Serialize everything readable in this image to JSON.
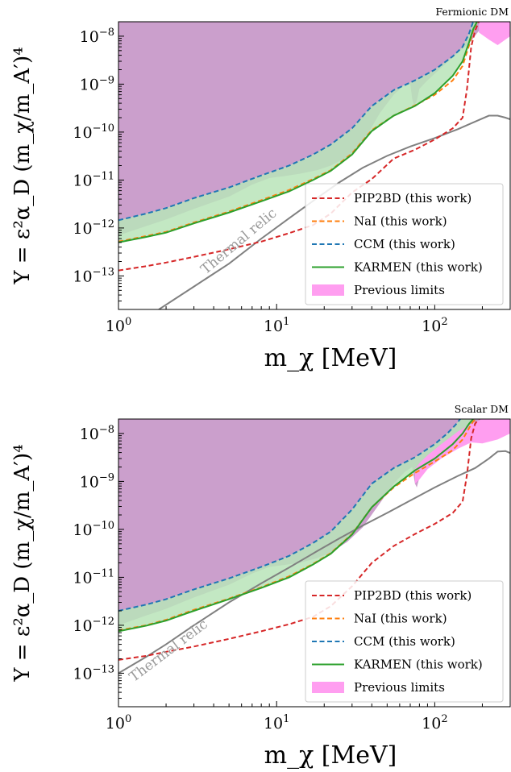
{
  "colors": {
    "PIP2BD": "#d62728",
    "NaI": "#ff7f0e",
    "CCM": "#1f77b4",
    "KARMEN": "#2ca02c",
    "previous": "#ff9ef0",
    "previous_overlap": "#cb9fcc",
    "band": "#b9e4b9",
    "relic": "#808080"
  },
  "chart_data": [
    {
      "type": "line",
      "title": "Fermionic DM",
      "xlabel": "m_χ [MeV]",
      "ylabel": "Y = ε²α_D (m_χ/m_A′)⁴",
      "xscale": "log",
      "yscale": "log",
      "xlim": [
        1,
        300
      ],
      "ylim": [
        2e-14,
        2e-08
      ],
      "xticks": [
        {
          "value": 1,
          "label": "10^0"
        },
        {
          "value": 10,
          "label": "10^1"
        },
        {
          "value": 100,
          "label": "10^2"
        }
      ],
      "yticks": [
        {
          "value": 1e-13,
          "label": "10^-13"
        },
        {
          "value": 1e-12,
          "label": "10^-12"
        },
        {
          "value": 1e-11,
          "label": "10^-11"
        },
        {
          "value": 1e-10,
          "label": "10^-10"
        },
        {
          "value": 1e-09,
          "label": "10^-9"
        },
        {
          "value": 1e-08,
          "label": "10^-8"
        }
      ],
      "legend_position": "lower-right",
      "relic_label": "Thermal relic",
      "series": [
        {
          "name": "PIP2BD (this work)",
          "key": "PIP2BD",
          "style": "dashed",
          "x": [
            1,
            1.5,
            2,
            3,
            5,
            8,
            12,
            17,
            22,
            30,
            40,
            55,
            75,
            100,
            130,
            150,
            160,
            170,
            180,
            190
          ],
          "y": [
            1.3e-13,
            1.6e-13,
            1.9e-13,
            2.5e-13,
            3.6e-13,
            5.2e-13,
            7.8e-13,
            1.15e-12,
            2e-12,
            5.5e-12,
            1.05e-11,
            2.8e-11,
            4.3e-11,
            7e-11,
            1.2e-10,
            2e-10,
            8e-10,
            6e-09,
            1.3e-08,
            2e-08
          ]
        },
        {
          "name": "NaI (this work)",
          "key": "NaI",
          "style": "dashed",
          "x": [
            1,
            1.5,
            2,
            3,
            5,
            8,
            12,
            17,
            22,
            30,
            40,
            55,
            75,
            100,
            130,
            150,
            165,
            175,
            185
          ],
          "y": [
            5.2e-13,
            6.8e-13,
            8.3e-13,
            1.3e-12,
            2.2e-12,
            3.8e-12,
            6.2e-12,
            1.05e-11,
            1.6e-11,
            3.6e-11,
            1.1e-10,
            2.2e-10,
            3.6e-10,
            6e-10,
            1.2e-09,
            2.4e-09,
            6.5e-09,
            1.3e-08,
            2e-08
          ]
        },
        {
          "name": "CCM (this work)",
          "key": "CCM",
          "style": "dashed",
          "x": [
            1,
            1.5,
            2,
            3,
            5,
            8,
            12,
            17,
            22,
            30,
            40,
            55,
            75,
            100,
            130,
            150,
            165,
            175
          ],
          "y": [
            1.45e-12,
            2e-12,
            2.6e-12,
            4.2e-12,
            7e-12,
            1.25e-11,
            2e-11,
            3.4e-11,
            5.5e-11,
            1.2e-10,
            3.5e-10,
            7.5e-10,
            1.2e-09,
            2e-09,
            3.8e-09,
            6e-09,
            1.15e-08,
            2e-08
          ]
        },
        {
          "name": "KARMEN (this work)",
          "key": "KARMEN",
          "style": "solid",
          "x": [
            1,
            1.5,
            2,
            3,
            5,
            8,
            12,
            17,
            22,
            30,
            40,
            55,
            75,
            100,
            130,
            150,
            165,
            175,
            185
          ],
          "y": [
            5e-13,
            6.5e-13,
            8e-13,
            1.25e-12,
            2.1e-12,
            3.6e-12,
            5.8e-12,
            1e-11,
            1.55e-11,
            3.4e-11,
            1.05e-10,
            2.2e-10,
            3.5e-10,
            6.5e-10,
            1.5e-09,
            3e-09,
            7.5e-09,
            1.4e-08,
            2e-08
          ]
        },
        {
          "name": "Previous limits",
          "key": "previous",
          "style": "fill"
        }
      ],
      "thermal_relic": {
        "x": [
          1.8,
          3,
          5,
          8,
          12,
          18,
          25,
          35,
          50,
          70,
          100,
          140,
          180,
          220,
          250,
          280,
          300
        ],
        "y": [
          2e-14,
          6e-14,
          1.8e-13,
          6e-13,
          1.6e-12,
          4.2e-12,
          9e-12,
          1.8e-11,
          3.2e-11,
          5e-11,
          7.5e-11,
          1.15e-10,
          1.65e-10,
          2.2e-10,
          2.2e-10,
          2e-10,
          1.85e-10
        ]
      },
      "previous_region": {
        "x": [
          1,
          1.5,
          2,
          3,
          5,
          7,
          9,
          11,
          14,
          18,
          22,
          28,
          35,
          45,
          55,
          65,
          70,
          72,
          74,
          77,
          80,
          90,
          110,
          140,
          170,
          200,
          250,
          300
        ],
        "y": [
          7e-13,
          1.1e-12,
          1.5e-12,
          2.5e-12,
          4.5e-12,
          8e-12,
          1.1e-11,
          1.2e-11,
          1.35e-11,
          1.6e-11,
          2e-11,
          3e-11,
          6e-11,
          2.5e-10,
          6e-10,
          1e-09,
          1e-09,
          5e-10,
          3.5e-10,
          4.5e-10,
          8e-10,
          1.2e-09,
          2.2e-09,
          4.5e-09,
          8e-09,
          1.6e-08,
          7e-09,
          1e-08
        ]
      },
      "previous_exclusive_region": {
        "x": [
          190,
          220,
          250,
          300,
          300,
          250,
          220,
          190
        ],
        "y": [
          1.2e-08,
          8.5e-09,
          6.5e-09,
          1e-08,
          2e-08,
          2e-08,
          2e-08,
          2e-08
        ]
      }
    },
    {
      "type": "line",
      "title": "Scalar DM",
      "xlabel": "m_χ [MeV]",
      "ylabel": "Y = ε²α_D (m_χ/m_A′)⁴",
      "xscale": "log",
      "yscale": "log",
      "xlim": [
        1,
        300
      ],
      "ylim": [
        2e-14,
        2e-08
      ],
      "xticks": [
        {
          "value": 1,
          "label": "10^0"
        },
        {
          "value": 10,
          "label": "10^1"
        },
        {
          "value": 100,
          "label": "10^2"
        }
      ],
      "yticks": [
        {
          "value": 1e-13,
          "label": "10^-13"
        },
        {
          "value": 1e-12,
          "label": "10^-12"
        },
        {
          "value": 1e-11,
          "label": "10^-11"
        },
        {
          "value": 1e-10,
          "label": "10^-10"
        },
        {
          "value": 1e-09,
          "label": "10^-9"
        },
        {
          "value": 1e-08,
          "label": "10^-8"
        }
      ],
      "legend_position": "lower-right",
      "relic_label": "Thermal relic",
      "series": [
        {
          "name": "PIP2BD (this work)",
          "key": "PIP2BD",
          "style": "dashed",
          "x": [
            1,
            1.5,
            2,
            3,
            5,
            8,
            12,
            17,
            22,
            30,
            40,
            55,
            75,
            100,
            130,
            150,
            160,
            170,
            180,
            190
          ],
          "y": [
            1.9e-13,
            2.3e-13,
            2.8e-13,
            3.6e-13,
            5.2e-13,
            7.5e-13,
            1.05e-12,
            1.5e-12,
            2.5e-12,
            6.5e-12,
            2e-11,
            4.5e-11,
            8e-11,
            1.3e-10,
            2.2e-10,
            3.8e-10,
            1.4e-09,
            8e-09,
            1.6e-08,
            2e-08
          ]
        },
        {
          "name": "NaI (this work)",
          "key": "NaI",
          "style": "dashed",
          "x": [
            1,
            1.5,
            2,
            3,
            5,
            8,
            12,
            17,
            22,
            30,
            40,
            55,
            75,
            100,
            130,
            150,
            165,
            175,
            185
          ],
          "y": [
            7.8e-13,
            1e-12,
            1.3e-12,
            2.1e-12,
            3.6e-12,
            6.2e-12,
            1.05e-11,
            1.9e-11,
            3.2e-11,
            8e-11,
            2.9e-10,
            7.5e-10,
            1.5e-09,
            2.6e-09,
            4.5e-09,
            7.5e-09,
            1.3e-08,
            1.8e-08,
            2e-08
          ]
        },
        {
          "name": "CCM (this work)",
          "key": "CCM",
          "style": "dashed",
          "x": [
            1,
            1.5,
            2,
            3,
            5,
            8,
            12,
            17,
            22,
            30,
            40,
            55,
            75,
            100,
            120,
            135,
            145
          ],
          "y": [
            2e-12,
            2.7e-12,
            3.5e-12,
            5.6e-12,
            9.5e-12,
            1.65e-11,
            2.8e-11,
            5.2e-11,
            9e-11,
            2.6e-10,
            9e-10,
            1.9e-09,
            3.2e-09,
            6e-09,
            1e-08,
            1.5e-08,
            2e-08
          ]
        },
        {
          "name": "KARMEN (this work)",
          "key": "KARMEN",
          "style": "solid",
          "x": [
            1,
            1.5,
            2,
            3,
            5,
            8,
            12,
            17,
            22,
            30,
            40,
            55,
            75,
            100,
            130,
            150,
            165,
            175
          ],
          "y": [
            7.5e-13,
            9.8e-13,
            1.25e-12,
            2e-12,
            3.5e-12,
            6e-12,
            1e-11,
            1.85e-11,
            3.1e-11,
            7.8e-11,
            2.9e-10,
            7.8e-10,
            1.7e-09,
            3e-09,
            6e-09,
            1e-08,
            1.6e-08,
            2e-08
          ]
        },
        {
          "name": "Previous limits",
          "key": "previous",
          "style": "fill"
        }
      ],
      "thermal_relic": {
        "x": [
          1,
          1.5,
          2,
          3,
          5,
          8,
          12,
          18,
          25,
          35,
          50,
          70,
          100,
          140,
          180,
          220,
          250,
          280,
          300
        ],
        "y": [
          1e-13,
          2.2e-13,
          4e-13,
          1e-12,
          3e-12,
          7.5e-12,
          1.6e-11,
          3.5e-11,
          6.5e-11,
          1.2e-10,
          2.2e-10,
          4e-10,
          7.5e-10,
          1.3e-09,
          1.9e-09,
          3e-09,
          4.2e-09,
          4.3e-09,
          3.9e-09
        ]
      },
      "previous_region": {
        "x": [
          1,
          1.5,
          2,
          3,
          5,
          7,
          9,
          11,
          14,
          18,
          22,
          28,
          35,
          45,
          55,
          65,
          72,
          75,
          77,
          80,
          90,
          110,
          140,
          170,
          200,
          250,
          300
        ],
        "y": [
          1e-12,
          1.6e-12,
          2.2e-12,
          3.8e-12,
          7e-12,
          1.2e-11,
          1.65e-11,
          1.8e-11,
          2e-11,
          2.5e-11,
          3.3e-11,
          5.5e-11,
          1.1e-10,
          3.5e-10,
          9e-10,
          1.6e-09,
          2e-09,
          9e-10,
          7.5e-10,
          1.2e-09,
          2.2e-09,
          4e-09,
          7e-09,
          1.1e-08,
          1.6e-08,
          8e-09,
          1e-08
        ]
      },
      "previous_exclusive_region": {
        "x": [
          75,
          80,
          90,
          110,
          140,
          170,
          200,
          250,
          300,
          300,
          200,
          170,
          140,
          110,
          90,
          80,
          75
        ],
        "y": [
          9e-10,
          1.1e-09,
          1.8e-09,
          3e-09,
          4.8e-09,
          6.5e-09,
          6.2e-09,
          7.5e-09,
          1e-08,
          2e-08,
          2e-08,
          1.6e-08,
          1.1e-08,
          6e-09,
          3.5e-09,
          2.4e-09,
          1.8e-09
        ]
      }
    }
  ]
}
